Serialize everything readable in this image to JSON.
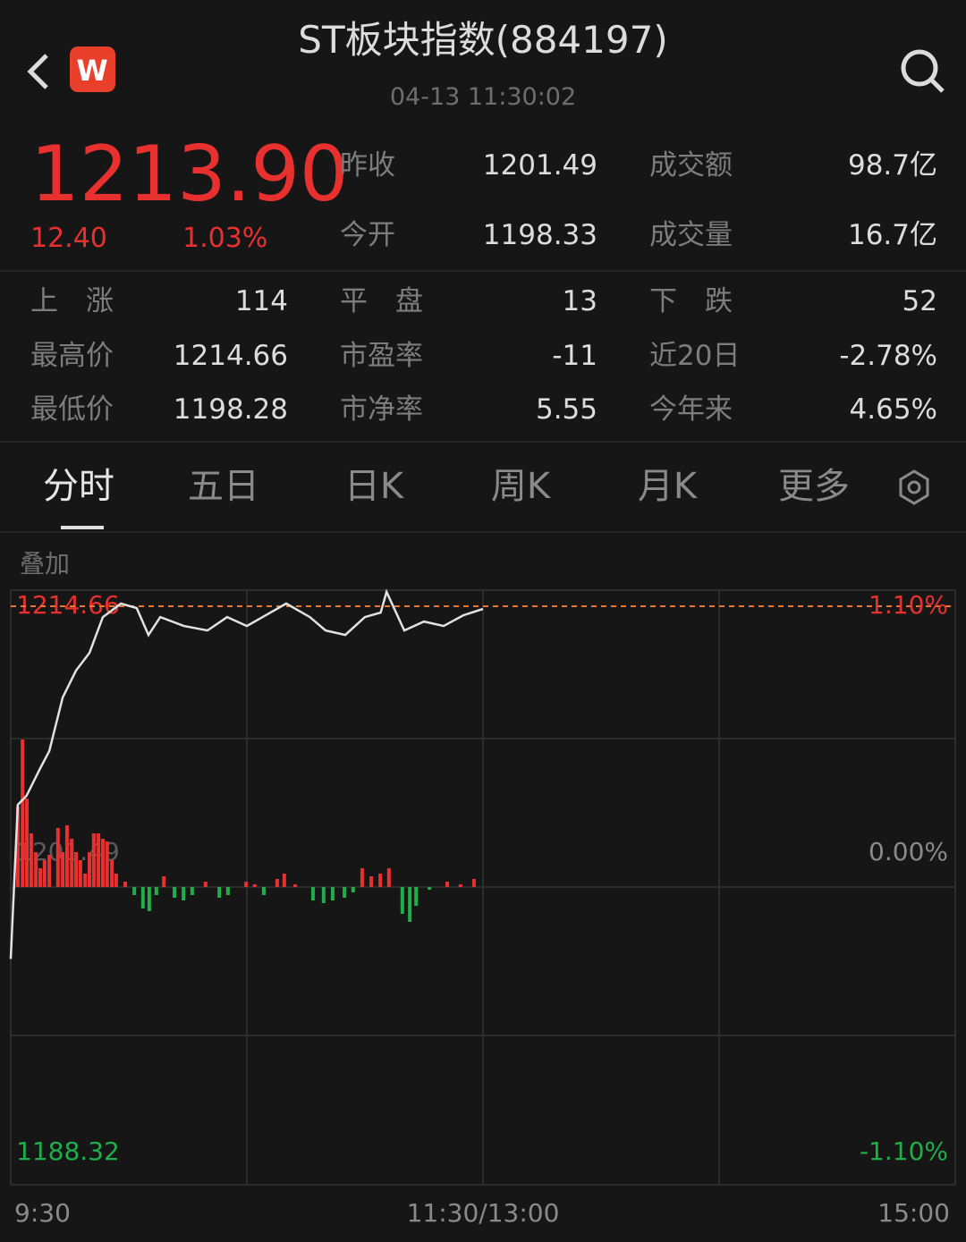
{
  "header": {
    "title": "ST板块指数(884197)",
    "timestamp": "04-13 11:30:02",
    "logo": "W"
  },
  "quote": {
    "price": "1213.90",
    "change": "12.40",
    "change_pct": "1.03%",
    "summary": [
      {
        "label": "昨收",
        "value": "1201.49"
      },
      {
        "label": "成交额",
        "value": "98.7亿"
      },
      {
        "label": "今开",
        "value": "1198.33"
      },
      {
        "label": "成交量",
        "value": "16.7亿"
      }
    ],
    "stats": [
      [
        {
          "label": "上　涨",
          "value": "114"
        },
        {
          "label": "平　盘",
          "value": "13"
        },
        {
          "label": "下　跌",
          "value": "52"
        }
      ],
      [
        {
          "label": "最高价",
          "value": "1214.66"
        },
        {
          "label": "市盈率",
          "value": "-11"
        },
        {
          "label": "近20日",
          "value": "-2.78%"
        }
      ],
      [
        {
          "label": "最低价",
          "value": "1198.28"
        },
        {
          "label": "市净率",
          "value": "5.55"
        },
        {
          "label": "今年来",
          "value": "4.65%"
        }
      ]
    ]
  },
  "tabs": [
    "分时",
    "五日",
    "日K",
    "周K",
    "月K",
    "更多"
  ],
  "overlay_label": "叠加",
  "chart_data": {
    "type": "line",
    "x": [
      0,
      1.8,
      4,
      7.4,
      9.8,
      13.2,
      16.6,
      20,
      23.4,
      28,
      32,
      35,
      38,
      44,
      50,
      55,
      60,
      66,
      70,
      76,
      80,
      85,
      90,
      94,
      95.5,
      100,
      105,
      110,
      115,
      120
    ],
    "series": [
      {
        "color": "#e2e2e2",
        "values": [
          1198.28,
          1205.16,
          1205.56,
          1206.76,
          1207.56,
          1209.95,
          1211.15,
          1211.94,
          1213.54,
          1214.14,
          1213.94,
          1212.74,
          1213.54,
          1213.14,
          1212.94,
          1213.54,
          1213.14,
          1213.74,
          1214.14,
          1213.54,
          1212.94,
          1212.74,
          1213.54,
          1213.74,
          1214.66,
          1212.94,
          1213.34,
          1213.14,
          1213.62,
          1213.9
        ]
      },
      {
        "type": "bar",
        "axis": "y2",
        "color": "#e8312f",
        "negative_color": "#1fae4a",
        "x": [
          1.8,
          3.0,
          4.1,
          5.2,
          6.4,
          7.5,
          8.6,
          9.8,
          12.0,
          13.2,
          14.3,
          15.5,
          16.6,
          17.7,
          18.9,
          20.0,
          21.1,
          22.3,
          23.4,
          24.5,
          25.7,
          26.8,
          29.1,
          31.4,
          33.6,
          35.2,
          37.0,
          38.9,
          41.6,
          43.9,
          46.1,
          49.5,
          53.0,
          55.2,
          59.8,
          62.0,
          64.3,
          67.7,
          69.5,
          72.3,
          76.8,
          79.5,
          81.8,
          84.8,
          87.0,
          89.3,
          91.6,
          93.9,
          96.1,
          99.5,
          101.4,
          103.0,
          106.4,
          110.9,
          114.3,
          117.7
        ],
        "values": [
          0.3,
          0.55,
          0.33,
          0.2,
          0.13,
          0.07,
          0.1,
          0.12,
          0.22,
          0.13,
          0.23,
          0.18,
          0.13,
          0.1,
          0.05,
          0.13,
          0.2,
          0.2,
          0.18,
          0.17,
          0.1,
          0.05,
          0.02,
          -0.03,
          -0.08,
          -0.09,
          -0.03,
          0.04,
          -0.04,
          -0.05,
          -0.03,
          0.02,
          -0.04,
          -0.03,
          0.02,
          0.01,
          -0.03,
          0.03,
          0.05,
          0.01,
          -0.05,
          -0.06,
          -0.05,
          -0.04,
          -0.02,
          0.07,
          0.04,
          0.05,
          0.07,
          -0.1,
          -0.13,
          -0.07,
          -0.01,
          0.02,
          0.01,
          0.03
        ]
      }
    ],
    "xlim": [
      0,
      240
    ],
    "xticks": [
      {
        "value": 0,
        "label": "9:30"
      },
      {
        "value": 120,
        "label": "11:30/13:00"
      },
      {
        "value": 240,
        "label": "15:00"
      }
    ],
    "ylim": [
      1188.32,
      1214.66
    ],
    "yticks": [
      1188.32,
      1201.49,
      1214.66
    ],
    "y2lim": [
      -1.1,
      1.1
    ],
    "y2ticks": [
      {
        "value": -1.1,
        "label": "-1.10%"
      },
      {
        "value": 0,
        "label": "0.00%"
      },
      {
        "value": 1.1,
        "label": "1.10%"
      }
    ]
  }
}
